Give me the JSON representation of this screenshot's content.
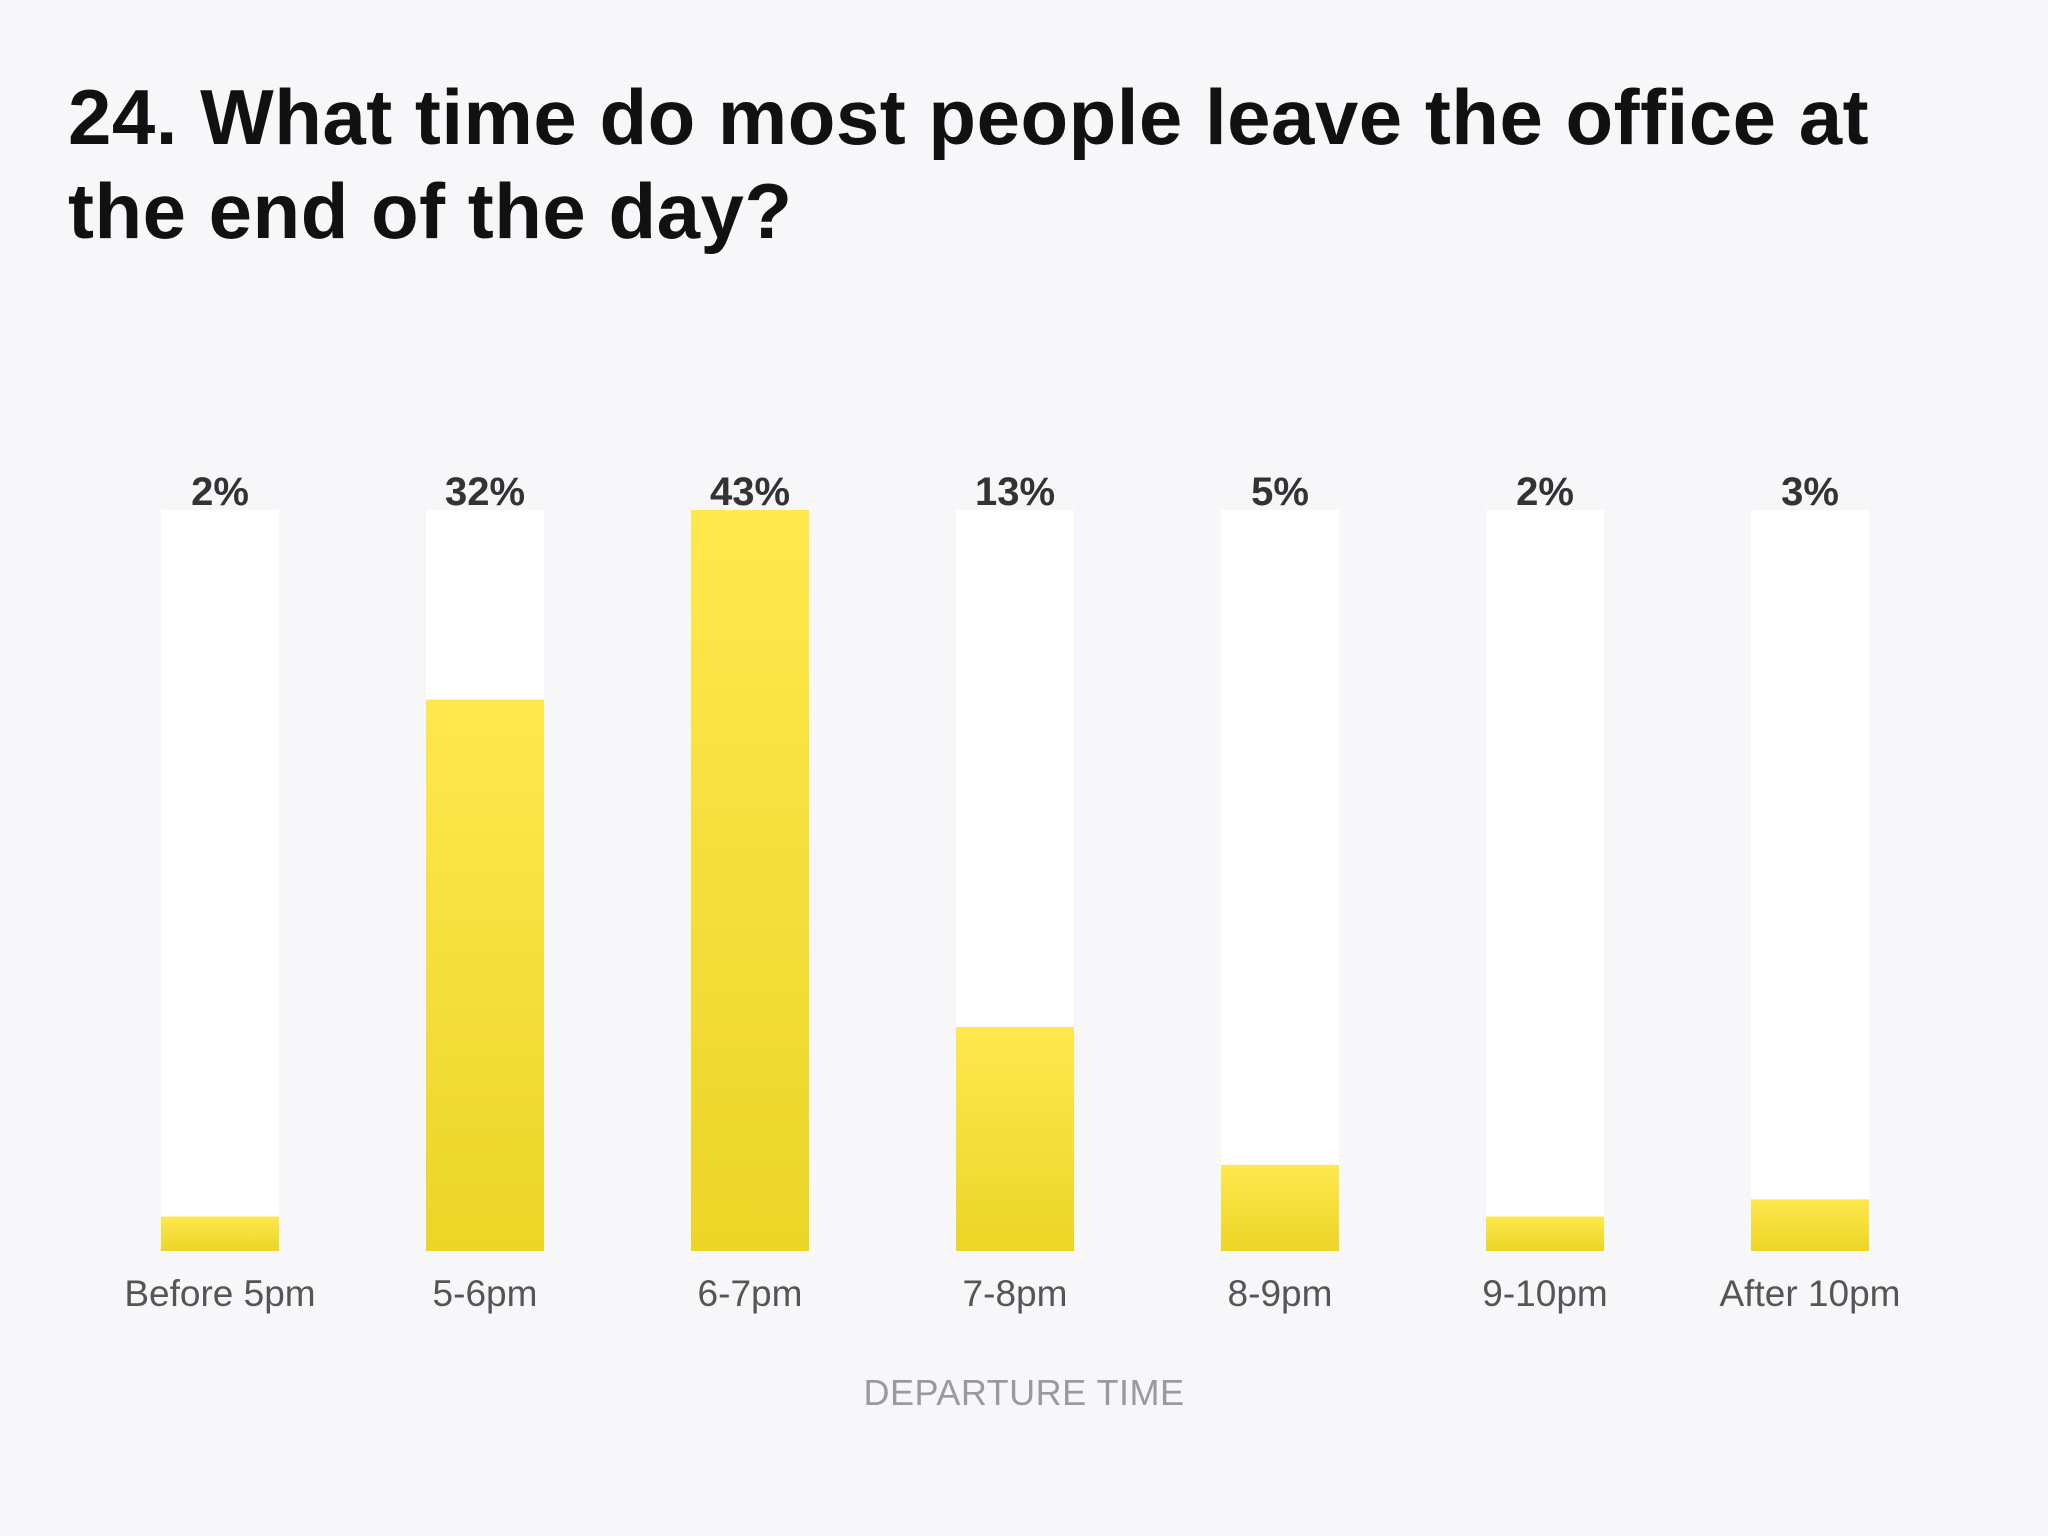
{
  "chart_data": {
    "type": "bar",
    "title": "24. What time do most people leave the office at the end of the day?",
    "xlabel": "DEPARTURE TIME",
    "ylabel": "",
    "categories": [
      "Before 5pm",
      "5-6pm",
      "6-7pm",
      "7-8pm",
      "8-9pm",
      "9-10pm",
      "After 10pm"
    ],
    "values": [
      2,
      32,
      43,
      13,
      5,
      2,
      3
    ],
    "value_labels": [
      "2%",
      "32%",
      "43%",
      "13%",
      "5%",
      "2%",
      "3%"
    ],
    "ylim": [
      0,
      43
    ],
    "grid": false,
    "legend": "none"
  },
  "colors": {
    "bar_fill_top": "#ffe84d",
    "bar_fill_bottom": "#ecd526",
    "bar_track": "#ffffff",
    "background": "#f7f6f9",
    "value_label": "#333333",
    "category_label": "#555555",
    "axis_label": "#9a9a9e",
    "title": "#111111"
  }
}
